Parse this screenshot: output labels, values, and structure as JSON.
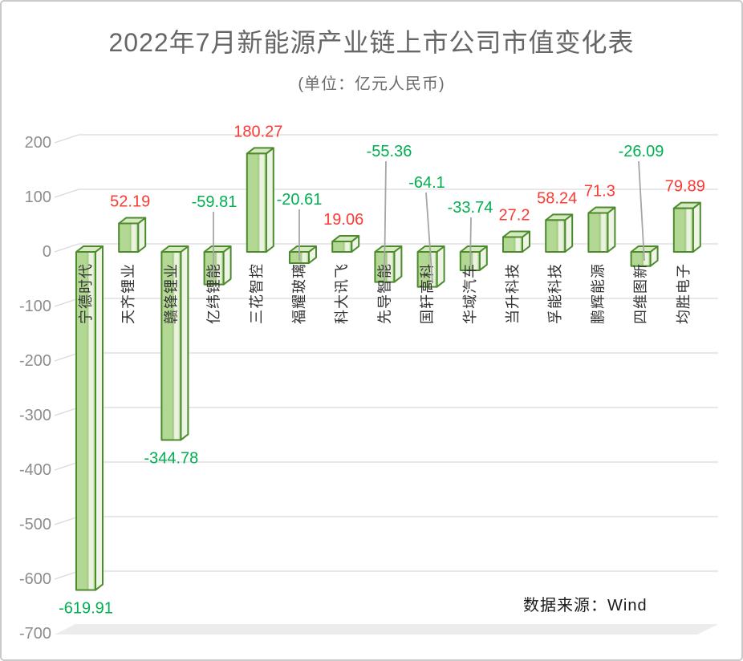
{
  "chart_data": {
    "type": "bar",
    "style": "3d-box",
    "title": "2022年7月新能源产业链上市公司市值变化表",
    "subtitle": "(单位：亿元人民币)",
    "source_note": "数据来源：Wind",
    "unit": "亿元人民币",
    "categories": [
      "宁德时代",
      "天齐锂业",
      "赣锋锂业",
      "亿纬锂能",
      "三花智控",
      "福耀玻璃",
      "科大讯飞",
      "先导智能",
      "国轩高科",
      "华域汽车",
      "当升科技",
      "孚能科技",
      "鹏辉能源",
      "四维图新",
      "均胜电子"
    ],
    "values": [
      -619.91,
      52.19,
      -344.78,
      -59.81,
      180.27,
      -20.61,
      19.06,
      -55.36,
      -64.1,
      -33.74,
      27.2,
      58.24,
      71.3,
      -26.09,
      79.89
    ],
    "value_labels": [
      "-619.91",
      "52.19",
      "-344.78",
      "-59.81",
      "180.27",
      "-20.61",
      "19.06",
      "-55.36",
      "-64.1",
      "-33.74",
      "27.2",
      "58.24",
      "71.3",
      "-26.09",
      "79.89"
    ],
    "ylabel": "",
    "xlabel": "",
    "ylim": [
      -700,
      200
    ],
    "yticks": [
      200,
      100,
      0,
      -100,
      -200,
      -300,
      -400,
      -500,
      -600,
      -700
    ],
    "grid": true,
    "legend_position": "none",
    "colors": {
      "positive_label": "#fb3b33",
      "negative_label": "#00b050",
      "bar_front": "#b3d894",
      "bar_front_light": "#ebf3e0",
      "bar_front_dark": "#9cc97c",
      "bar_top": "#d7e9c0",
      "bar_side": "#eef4e6",
      "bar_stroke": "#4c8a2e",
      "gridline": "#d9d9d9",
      "axis_text": "#8d8d8d",
      "category_text": "#333333",
      "leader_line": "#a6a6a6",
      "floor": "#ececec",
      "title_text": "#666666",
      "source_text": "#1a1a1a"
    }
  }
}
